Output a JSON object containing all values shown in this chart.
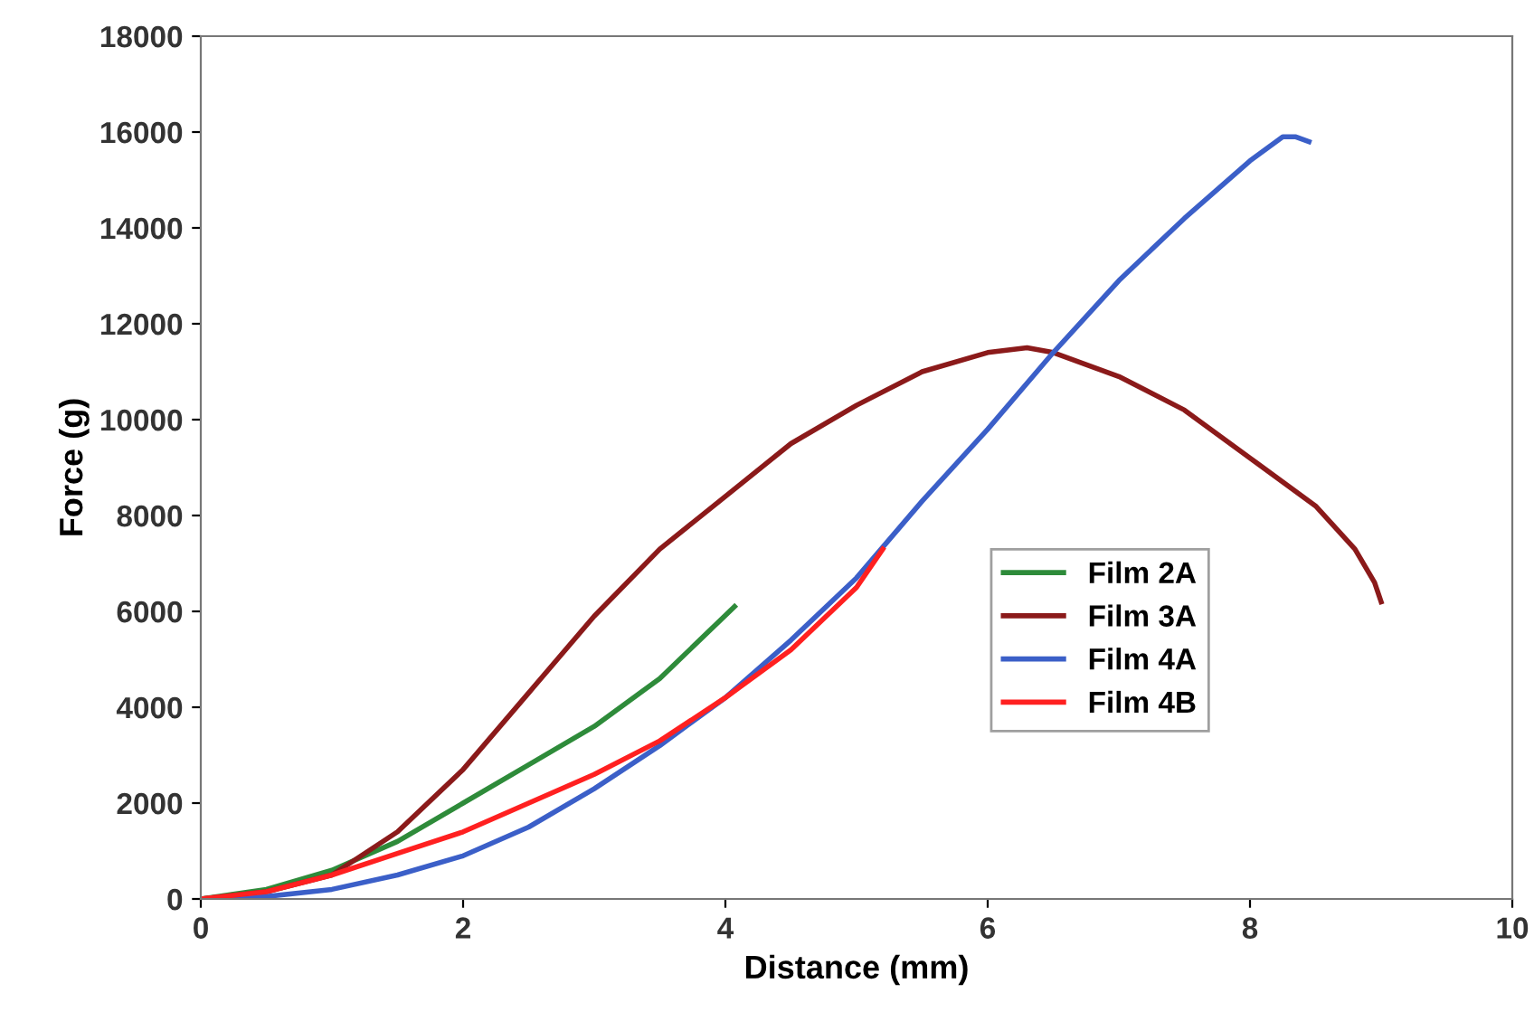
{
  "chart_data": {
    "type": "line",
    "xlabel": "Distance (mm)",
    "ylabel": "Force (g)",
    "xlim": [
      0,
      10
    ],
    "ylim": [
      0,
      18000
    ],
    "xticks": [
      0,
      2,
      4,
      6,
      8,
      10
    ],
    "yticks": [
      0,
      2000,
      4000,
      6000,
      8000,
      10000,
      12000,
      14000,
      16000,
      18000
    ],
    "grid": false,
    "legend": "right",
    "marker": "none",
    "line_style": "solid",
    "series": [
      {
        "name": "Film 2A",
        "color": "#2e8b3a",
        "x": [
          0,
          0.5,
          1,
          1.5,
          2,
          2.5,
          3,
          3.5,
          4.07
        ],
        "values": [
          0,
          200,
          600,
          1200,
          2000,
          2800,
          3600,
          4600,
          6100
        ]
      },
      {
        "name": "Film 3A",
        "color": "#8b1a1a",
        "x": [
          0,
          0.5,
          1,
          1.5,
          2,
          2.5,
          3,
          3.5,
          4,
          4.5,
          5,
          5.5,
          6,
          6.3,
          6.5,
          7,
          7.5,
          8,
          8.5,
          8.8,
          8.95,
          9.0
        ],
        "values": [
          0,
          150,
          500,
          1400,
          2700,
          4300,
          5900,
          7300,
          8400,
          9500,
          10300,
          11000,
          11400,
          11500,
          11400,
          10900,
          10200,
          9200,
          8200,
          7300,
          6600,
          6200
        ]
      },
      {
        "name": "Film 4A",
        "color": "#3b5fc8",
        "x": [
          0,
          0.5,
          1,
          1.5,
          2,
          2.5,
          3,
          3.5,
          4,
          4.5,
          5,
          5.5,
          6,
          6.5,
          7,
          7.5,
          8,
          8.25,
          8.35,
          8.45
        ],
        "values": [
          0,
          50,
          200,
          500,
          900,
          1500,
          2300,
          3200,
          4200,
          5400,
          6700,
          8300,
          9800,
          11400,
          12900,
          14200,
          15400,
          15900,
          15900,
          15800
        ]
      },
      {
        "name": "Film 4B",
        "color": "#ff2020",
        "x": [
          0,
          0.5,
          1,
          1.5,
          2,
          2.5,
          3,
          3.5,
          4,
          4.5,
          5,
          5.2
        ],
        "values": [
          0,
          150,
          500,
          950,
          1400,
          2000,
          2600,
          3300,
          4200,
          5200,
          6500,
          7300
        ]
      }
    ]
  }
}
